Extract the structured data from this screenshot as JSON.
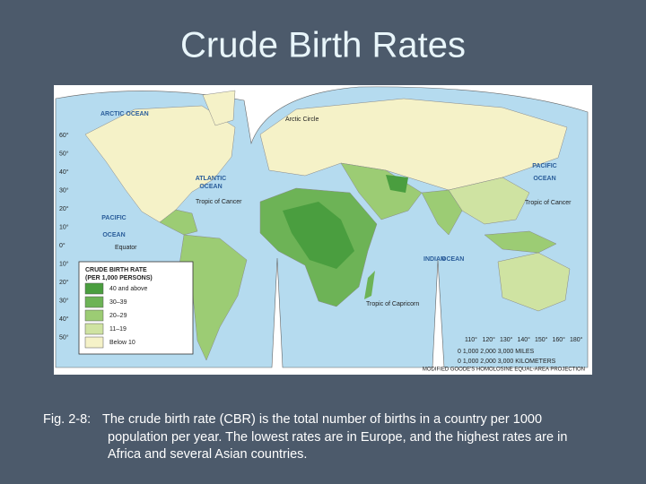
{
  "title": "Crude Birth Rates",
  "map": {
    "labels": [
      "ARCTIC OCEAN",
      "Arctic Circle",
      "ATLANTIC",
      "OCEAN",
      "Tropic of Cancer",
      "PACIFIC",
      "OCEAN",
      "Equator",
      "Tropic of Capricorn",
      "INDIAN",
      "OCEAN",
      "PACIFIC",
      "OCEAN",
      "Tropic of Cancer"
    ],
    "legend": {
      "title": [
        "CRUDE BIRTH RATE",
        "(PER 1,000 PERSONS)"
      ],
      "items": [
        {
          "label": "40 and above",
          "color": "#4a9e3f"
        },
        {
          "label": "30–39",
          "color": "#6db356"
        },
        {
          "label": "20–29",
          "color": "#9ccc74"
        },
        {
          "label": "11–19",
          "color": "#cfe3a2"
        },
        {
          "label": "Below 10",
          "color": "#f5f2c8"
        }
      ]
    },
    "latitudes": [
      "60°",
      "50°",
      "40°",
      "30°",
      "20°",
      "10°",
      "0°",
      "10°",
      "20°",
      "30°",
      "40°",
      "50°"
    ],
    "longitudes": [
      "110°",
      "120°",
      "130°",
      "140°",
      "150°",
      "160°",
      "180°"
    ],
    "scale": [
      "0     1,000     2,000     3,000 MILES",
      "0   1,000   2,000   3,000 KILOMETERS"
    ],
    "projection": "MODIFIED GOODE'S HOMOLOSINE EQUAL-AREA PROJECTION"
  },
  "caption": {
    "figure": "Fig. 2-8:",
    "lines": [
      "The crude birth rate (CBR) is the total number of births in a country per 1000",
      "population per year.  The lowest rates are in Europe, and the highest rates are in",
      "Africa and several Asian countries."
    ]
  }
}
